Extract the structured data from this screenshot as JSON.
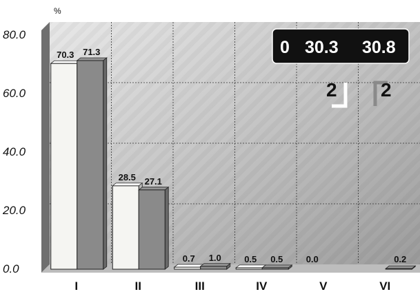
{
  "chart_data": {
    "type": "bar",
    "y_unit": "%",
    "ylim": [
      0,
      80
    ],
    "yticks": [
      "0.0",
      "20.0",
      "40.0",
      "60.0",
      "80.0"
    ],
    "categories": [
      "I",
      "II",
      "III",
      "IV",
      "V",
      "VI"
    ],
    "series": [
      {
        "values": [
          70.3,
          28.5,
          0.7,
          0.5,
          0.0,
          0.0
        ],
        "color": "#f5f5f2",
        "labels": [
          "70.3",
          "28.5",
          "0.7",
          "0.5",
          "0.0",
          ""
        ]
      },
      {
        "values": [
          71.3,
          27.1,
          1.0,
          0.5,
          0.0,
          0.2
        ],
        "color": "#8a8a8a",
        "labels": [
          "71.3",
          "27.1",
          "1.0",
          "0.5",
          "",
          "0.2"
        ]
      }
    ],
    "grid": true,
    "annotation_box": {
      "values": [
        "0",
        "30.3",
        "30.8"
      ]
    },
    "legend": [
      {
        "label": "2",
        "color": "#ffffff"
      },
      {
        "label": "2",
        "color": "#8a8a8a"
      }
    ]
  }
}
